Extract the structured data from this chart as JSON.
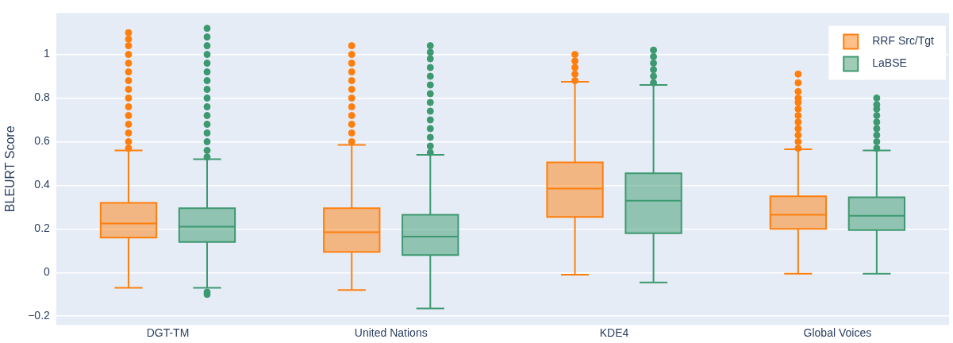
{
  "chart_data": {
    "type": "box",
    "ylabel": "BLEURT Score",
    "categories": [
      "DGT-TM",
      "United Nations",
      "KDE4",
      "Global Voices"
    ],
    "ylim": [
      -0.24,
      1.19
    ],
    "yticks": [
      {
        "value": -0.2,
        "label": "−0.2"
      },
      0,
      0.2,
      0.4,
      0.6,
      0.8,
      1
    ],
    "grid": "y",
    "legend": "top right",
    "marker": "circle",
    "series": [
      {
        "name": "RRF Src/Tgt",
        "color": "#ff7f0e",
        "boxes": [
          {
            "low": -0.07,
            "q1": 0.16,
            "median": 0.225,
            "q3": 0.32,
            "high": 0.56,
            "outliers": [
              0.57,
              0.6,
              0.64,
              0.68,
              0.72,
              0.76,
              0.8,
              0.84,
              0.88,
              0.92,
              0.96,
              1.0,
              1.04,
              1.07,
              1.1
            ]
          },
          {
            "low": -0.08,
            "q1": 0.095,
            "median": 0.185,
            "q3": 0.295,
            "high": 0.585,
            "outliers": [
              0.6,
              0.64,
              0.68,
              0.72,
              0.76,
              0.8,
              0.84,
              0.88,
              0.92,
              0.96,
              1.0,
              1.04
            ]
          },
          {
            "low": -0.01,
            "q1": 0.255,
            "median": 0.385,
            "q3": 0.505,
            "high": 0.875,
            "outliers": [
              0.88,
              0.91,
              0.94,
              0.97,
              1.0
            ]
          },
          {
            "low": -0.005,
            "q1": 0.2,
            "median": 0.265,
            "q3": 0.35,
            "high": 0.565,
            "outliers": [
              0.57,
              0.6,
              0.63,
              0.66,
              0.69,
              0.72,
              0.75,
              0.78,
              0.8,
              0.83,
              0.87,
              0.91
            ]
          }
        ]
      },
      {
        "name": "LaBSE",
        "color": "#3d9970",
        "boxes": [
          {
            "low": -0.07,
            "q1": 0.14,
            "median": 0.21,
            "q3": 0.295,
            "high": 0.52,
            "outliers": [
              -0.09,
              -0.1,
              0.53,
              0.56,
              0.6,
              0.64,
              0.68,
              0.72,
              0.76,
              0.8,
              0.84,
              0.88,
              0.92,
              0.96,
              1.0,
              1.04,
              1.08,
              1.12
            ]
          },
          {
            "low": -0.165,
            "q1": 0.08,
            "median": 0.165,
            "q3": 0.265,
            "high": 0.54,
            "outliers": [
              0.55,
              0.58,
              0.62,
              0.66,
              0.7,
              0.74,
              0.78,
              0.82,
              0.86,
              0.9,
              0.94,
              0.98,
              1.01,
              1.04
            ]
          },
          {
            "low": -0.045,
            "q1": 0.18,
            "median": 0.33,
            "q3": 0.455,
            "high": 0.86,
            "outliers": [
              0.87,
              0.9,
              0.93,
              0.96,
              0.99,
              1.02
            ]
          },
          {
            "low": -0.005,
            "q1": 0.195,
            "median": 0.26,
            "q3": 0.345,
            "high": 0.56,
            "outliers": [
              0.57,
              0.6,
              0.63,
              0.66,
              0.69,
              0.72,
              0.75,
              0.77,
              0.8
            ]
          }
        ]
      }
    ]
  }
}
